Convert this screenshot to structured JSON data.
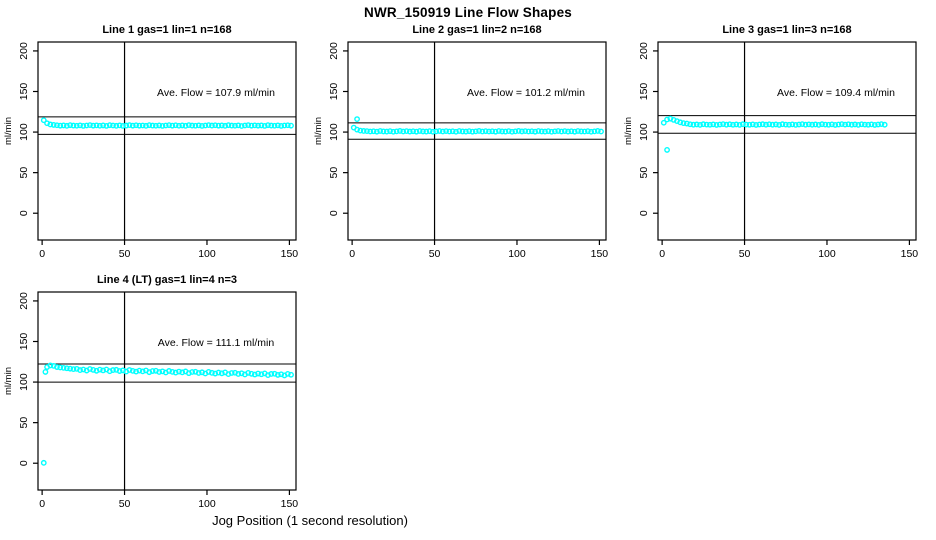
{
  "title": "NWR_150919  Line Flow Shapes",
  "xlabel": "Jog Position (1 second resolution)",
  "colors": {
    "point_color": "#00FFFF",
    "line_color": "#000000",
    "background": "#FFFFFF",
    "text_color": "#000000"
  },
  "chart_data": {
    "type": "scatter",
    "ylabel": "ml/min",
    "x_ticks": [
      0,
      50,
      100,
      150
    ],
    "y_ticks": [
      0,
      50,
      100,
      150,
      200
    ],
    "x_range": [
      -2.5,
      154
    ],
    "y_range": [
      -33,
      211
    ],
    "vline_x": 50,
    "grid": false,
    "legend": "none",
    "layout": "2 rows x 3 cols; panels 1-3 top row, panel 4 bottom-left",
    "panels": [
      {
        "title": "Line 1 gas=1 lin=1 n=168",
        "ave_flow": 107.9,
        "ave_flow_label": "Ave. Flow =  107.9  ml/min",
        "hlines": [
          118.7,
          97.1
        ],
        "x_start": 1,
        "x_step": 2,
        "values": [
          114.6,
          110.9,
          109.4,
          108.8,
          108.4,
          107.9,
          108.2,
          107.7,
          108.5,
          108.0,
          107.8,
          108.3,
          107.6,
          108.1,
          108.6,
          107.9,
          108.3,
          107.8,
          108.2,
          107.6,
          108.5,
          108.1,
          107.7,
          108.3,
          107.6,
          108.0,
          108.6,
          107.9,
          108.4,
          107.9,
          108.1,
          107.7,
          108.5,
          108.0,
          107.8,
          108.2,
          107.6,
          108.1,
          108.5,
          107.9,
          108.4,
          107.8,
          108.2,
          107.7,
          108.6,
          108.0,
          107.8,
          108.3,
          107.6,
          108.1,
          108.6,
          108.0,
          108.4,
          107.9,
          108.2,
          107.7,
          108.5,
          108.0,
          107.8,
          108.3,
          107.5,
          108.1,
          108.6,
          107.9,
          108.3,
          107.9,
          108.2,
          107.6,
          108.5,
          108.0,
          107.8,
          108.3,
          107.6,
          108.1,
          108.4,
          107.9
        ],
        "outliers": []
      },
      {
        "title": "Line 2 gas=1 lin=2 n=168",
        "ave_flow": 101.2,
        "ave_flow_label": "Ave. Flow =  101.2  ml/min",
        "hlines": [
          111.3,
          91.1
        ],
        "x_start": 1,
        "x_step": 2,
        "values": [
          105.5,
          103.0,
          101.8,
          101.4,
          101.2,
          100.7,
          101.0,
          100.5,
          101.3,
          100.8,
          100.6,
          101.1,
          100.4,
          100.9,
          101.4,
          100.7,
          101.2,
          100.6,
          101.0,
          100.5,
          101.3,
          100.8,
          100.6,
          101.1,
          100.4,
          100.9,
          101.3,
          100.7,
          101.2,
          100.7,
          101.0,
          100.4,
          101.3,
          100.8,
          100.6,
          101.1,
          100.5,
          100.9,
          101.4,
          100.7,
          101.1,
          100.7,
          101.0,
          100.5,
          101.3,
          100.8,
          100.6,
          101.2,
          100.4,
          100.9,
          101.4,
          100.8,
          101.2,
          100.7,
          101.0,
          100.5,
          101.3,
          100.8,
          100.6,
          101.1,
          100.4,
          100.9,
          101.3,
          100.7,
          101.2,
          100.6,
          101.0,
          100.5,
          101.3,
          100.8,
          100.7,
          101.1,
          100.4,
          100.9,
          101.4,
          100.7
        ],
        "outliers": [
          [
            3,
            116.0
          ]
        ]
      },
      {
        "title": "Line 3 gas=1 lin=3 n=168",
        "ave_flow": 109.4,
        "ave_flow_label": "Ave. Flow =  109.4  ml/min",
        "hlines": [
          120.3,
          98.5
        ],
        "x_start": 1,
        "x_step": 2,
        "values": [
          111.5,
          115.5,
          116.5,
          115.0,
          113.5,
          112.0,
          111.0,
          110.5,
          109.6,
          109.1,
          109.4,
          108.9,
          109.7,
          109.2,
          109.0,
          109.5,
          108.8,
          109.3,
          109.8,
          109.1,
          109.6,
          109.0,
          109.4,
          108.9,
          109.7,
          109.2,
          109.0,
          109.5,
          108.8,
          109.3,
          109.7,
          109.1,
          109.6,
          109.1,
          109.4,
          108.8,
          109.7,
          109.2,
          109.0,
          109.5,
          108.9,
          109.3,
          109.8,
          109.1,
          109.5,
          109.1,
          109.4,
          108.9,
          109.7,
          109.2,
          109.0,
          109.5,
          108.8,
          109.3,
          109.8,
          109.2,
          109.6,
          109.1,
          109.4,
          108.9,
          109.6,
          109.2,
          109.0,
          109.5,
          108.8,
          109.3,
          109.8,
          109.1
        ],
        "outliers": [
          [
            3,
            78.0
          ]
        ]
      },
      {
        "title": "Line 4 (LT) gas=1 lin=4 n=3",
        "ave_flow": 111.1,
        "ave_flow_label": "Ave. Flow =  111.1  ml/min",
        "hlines": [
          122.2,
          100.0
        ],
        "x_start": 3,
        "x_step": 2,
        "values": [
          118.5,
          120.5,
          120.0,
          118.5,
          118.0,
          117.5,
          117.0,
          116.5,
          116.0,
          116.3,
          114.8,
          115.5,
          114.2,
          116.1,
          115.0,
          113.9,
          115.3,
          114.4,
          115.5,
          113.4,
          114.8,
          115.1,
          113.6,
          114.4,
          113.0,
          114.9,
          113.8,
          112.9,
          114.1,
          113.2,
          114.3,
          112.2,
          113.6,
          113.9,
          112.4,
          113.2,
          111.8,
          113.7,
          112.6,
          111.7,
          112.9,
          112.0,
          113.1,
          111.0,
          112.4,
          112.7,
          111.2,
          112.0,
          110.6,
          112.5,
          111.4,
          110.5,
          111.7,
          110.8,
          111.9,
          109.8,
          111.2,
          111.5,
          110.0,
          110.8,
          109.4,
          111.3,
          110.2,
          109.3,
          110.5,
          109.6,
          110.7,
          108.6,
          110.0,
          110.3,
          108.8,
          109.6,
          108.2,
          110.1,
          109.0
        ],
        "outliers": [
          [
            1,
            0.5
          ],
          [
            2,
            112.5
          ]
        ]
      }
    ]
  }
}
